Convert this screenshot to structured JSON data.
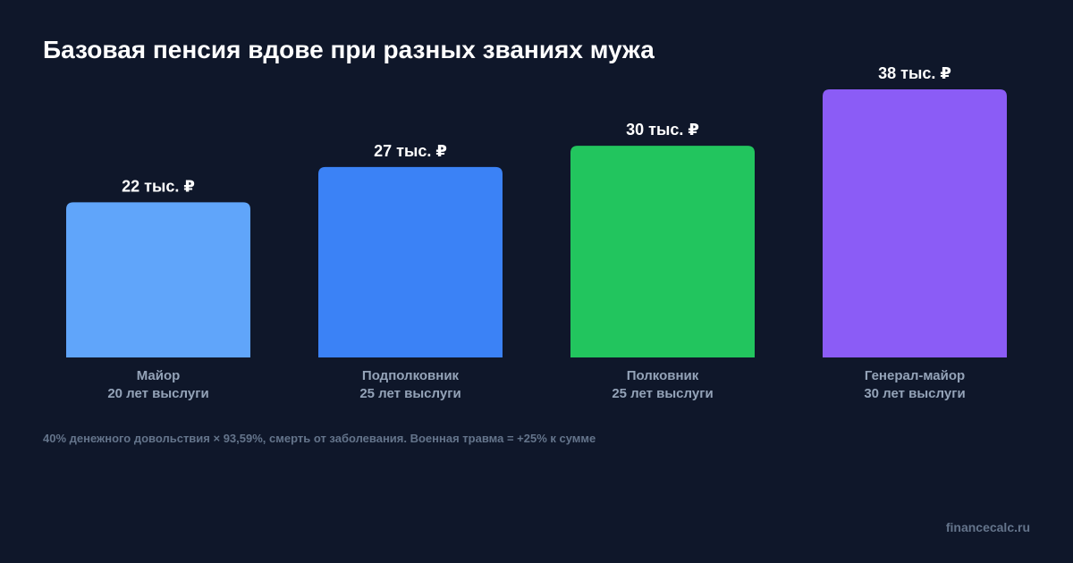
{
  "title": "Базовая пенсия вдове при разных званиях мужа",
  "footnote": "40% денежного довольствия × 93,59%, смерть от заболевания. Военная травма = +25% к сумме",
  "watermark": "financecalc.ru",
  "chart_data": {
    "type": "bar",
    "title": "Базовая пенсия вдове при разных званиях мужа",
    "xlabel": "",
    "ylabel": "",
    "grid": false,
    "categories": [
      [
        "Майор",
        "20 лет выслуги"
      ],
      [
        "Подполковник",
        "25 лет выслуги"
      ],
      [
        "Полковник",
        "25 лет выслуги"
      ],
      [
        "Генерал-майор",
        "30 лет выслуги"
      ]
    ],
    "values": [
      22,
      27,
      30,
      38
    ],
    "value_labels": [
      "22 тыс. ₽",
      "27 тыс. ₽",
      "30 тыс. ₽",
      "38 тыс. ₽"
    ],
    "colors": [
      "#60a5fa",
      "#3b82f6",
      "#22c55e",
      "#8b5cf6"
    ],
    "ylim": [
      0,
      38
    ]
  }
}
